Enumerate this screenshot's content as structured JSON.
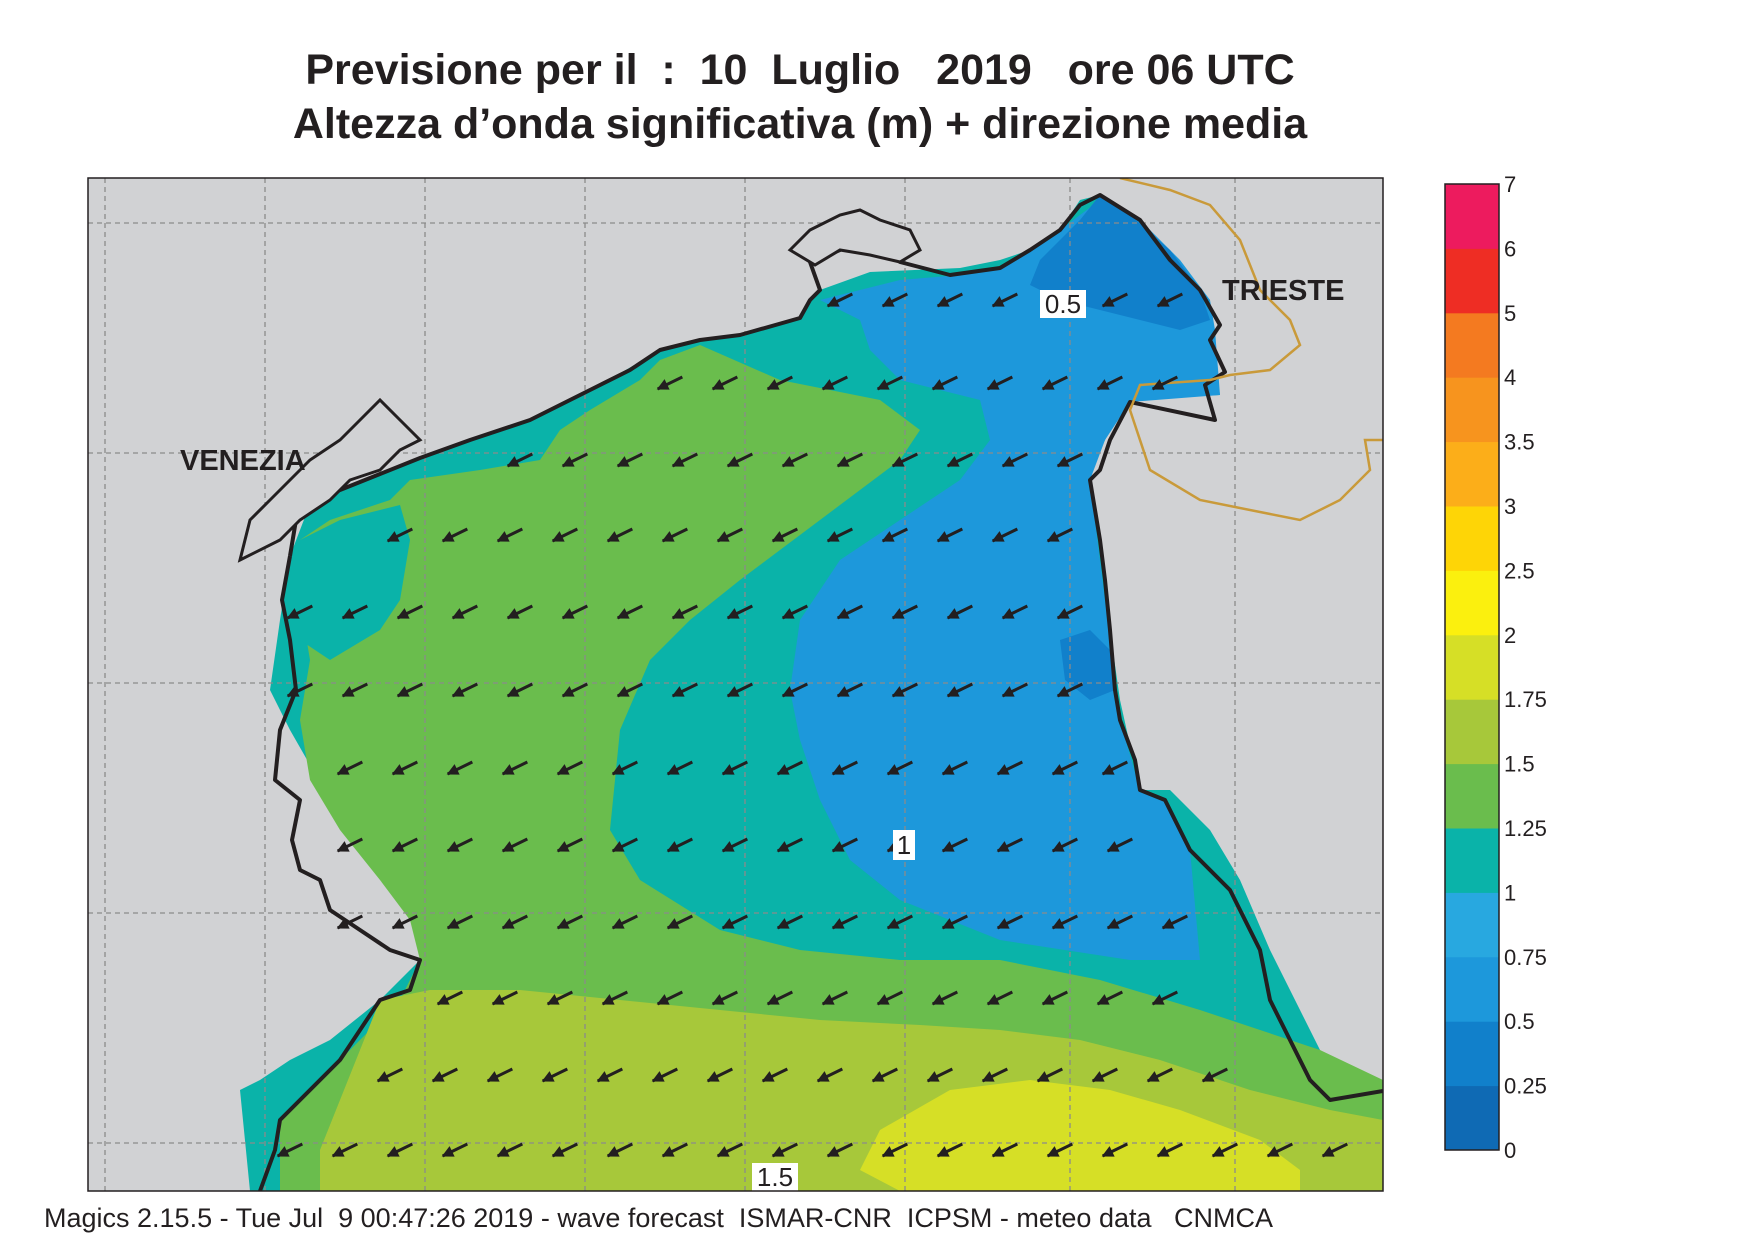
{
  "title_line1": "Previsione per il  :  10  Luglio   2019   ore 06 UTC",
  "title_line2": "Altezza d’onda significativa (m) + direzione media",
  "footer": "Magics 2.15.5 - Tue Jul  9 00:47:26 2019 - wave forecast  ISMAR-CNR  ICPSM - meteo data   CNMCA",
  "cities": [
    {
      "name": "VENEZIA"
    },
    {
      "name": "TRIESTE"
    }
  ],
  "contour_labels": [
    "0.5",
    "1",
    "1.5"
  ],
  "colorbar": {
    "levels": [
      "0",
      "0.25",
      "0.5",
      "0.75",
      "1",
      "1.25",
      "1.5",
      "1.75",
      "2",
      "2.5",
      "3",
      "3.5",
      "4",
      "5",
      "6",
      "7"
    ],
    "colors": [
      "#0f6ab4",
      "#1180cb",
      "#1d98db",
      "#28a8e0",
      "#0ab3a9",
      "#6abd4d",
      "#a7c83a",
      "#d6df26",
      "#fbf00e",
      "#fed506",
      "#fcae19",
      "#f7941e",
      "#f47a20",
      "#ee2d24",
      "#ed1b5e"
    ]
  },
  "colors": {
    "land": "#d1d2d4",
    "grid": "#8b8b8b",
    "coast": "#231f20",
    "border": "#c99a3a",
    "arrow": "#231f20"
  },
  "wave_direction": "toward west-southwest"
}
